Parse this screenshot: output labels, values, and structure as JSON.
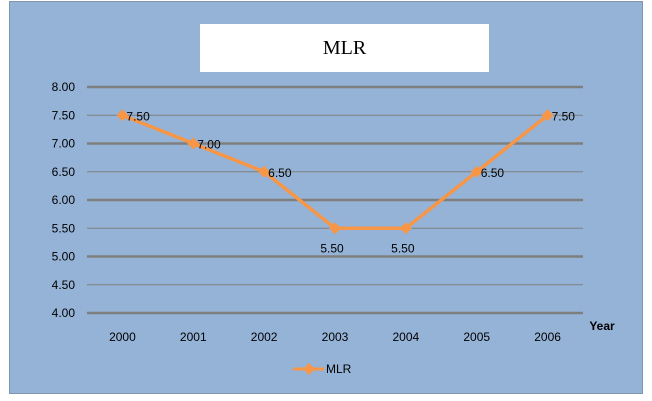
{
  "chart_data": {
    "type": "line",
    "title": "MLR",
    "xlabel": "Year",
    "ylabel": "",
    "categories": [
      "2000",
      "2001",
      "2002",
      "2003",
      "2004",
      "2005",
      "2006"
    ],
    "series": [
      {
        "name": "MLR",
        "values": [
          7.5,
          7.0,
          6.5,
          5.5,
          5.5,
          6.5,
          7.5
        ],
        "data_labels": [
          "7.50",
          "7.00",
          "6.50",
          "5.50",
          "5.50",
          "6.50",
          "7.50"
        ],
        "color": "#f79646"
      }
    ],
    "ylim": [
      4.0,
      8.0
    ],
    "yticks": [
      "4.00",
      "4.50",
      "5.00",
      "5.50",
      "6.00",
      "6.50",
      "7.00",
      "7.50",
      "8.00"
    ],
    "grid": true,
    "legend_position": "bottom-center",
    "colors": {
      "chart_background": "#95b3d7",
      "title_background": "#ffffff",
      "gridline": "#7f7f7f"
    }
  }
}
